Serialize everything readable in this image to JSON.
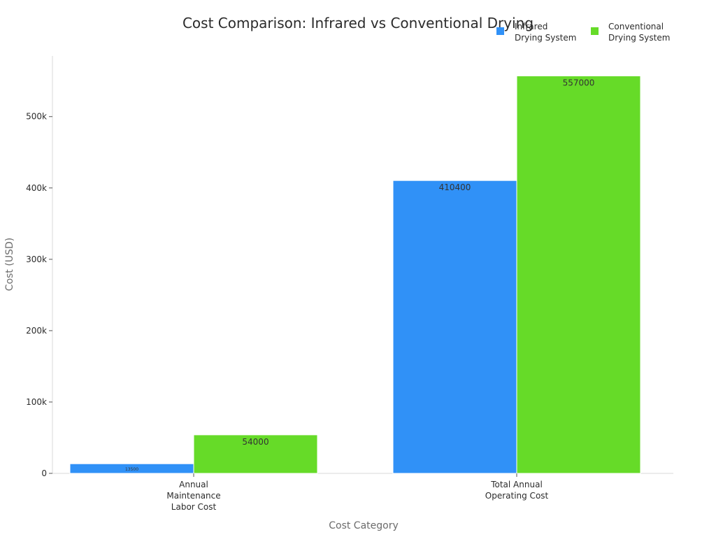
{
  "chart_data": {
    "type": "bar",
    "title": "Cost Comparison: Infrared vs Conventional Drying",
    "xlabel": "Cost Category",
    "ylabel": "Cost (USD)",
    "categories": [
      [
        "Annual",
        "Maintenance",
        "Labor Cost"
      ],
      [
        "Total Annual",
        "Operating Cost"
      ]
    ],
    "series": [
      {
        "name": [
          "Infrared",
          "Drying System"
        ],
        "values": [
          13500,
          410400
        ],
        "labels": [
          "13500",
          "410400"
        ],
        "color": "#3091f7"
      },
      {
        "name": [
          "Conventional",
          "Drying System"
        ],
        "values": [
          54000,
          557000
        ],
        "labels": [
          "54000",
          "557000"
        ],
        "color": "#66db28"
      }
    ],
    "ylim": [
      0,
      585000
    ],
    "yticks": [
      0,
      100000,
      200000,
      300000,
      400000,
      500000
    ],
    "ytick_labels": [
      "0",
      "100k",
      "200k",
      "300k",
      "400k",
      "500k"
    ],
    "grid": false,
    "legend": "top-right"
  }
}
